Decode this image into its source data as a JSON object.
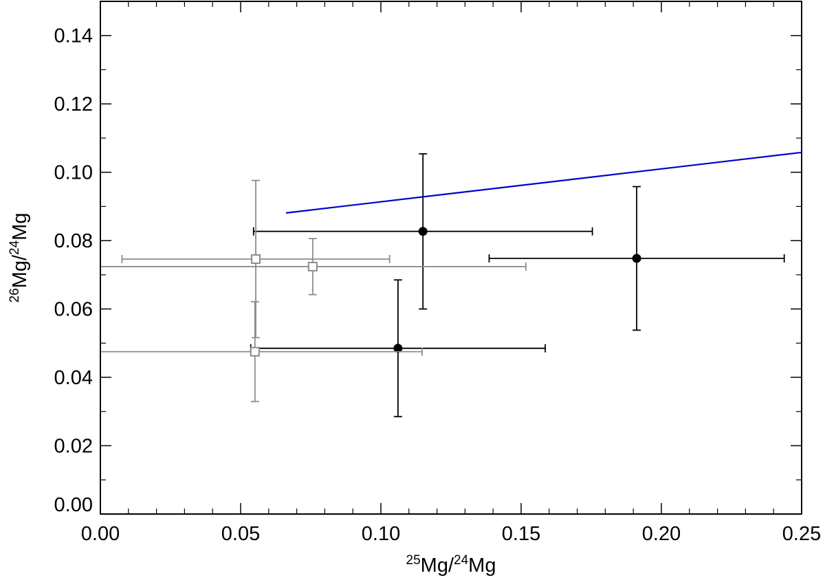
{
  "chart_data": {
    "type": "scatter",
    "xlabel": [
      {
        "text": "25",
        "sup": true
      },
      {
        "text": "Mg/",
        "sup": false
      },
      {
        "text": "24",
        "sup": true
      },
      {
        "text": "Mg",
        "sup": false
      }
    ],
    "ylabel": [
      {
        "text": "26",
        "sup": true
      },
      {
        "text": "Mg/",
        "sup": false
      },
      {
        "text": "24",
        "sup": true
      },
      {
        "text": "Mg",
        "sup": false
      }
    ],
    "xlim": [
      0,
      0.25
    ],
    "ylim": [
      0,
      0.15
    ],
    "xticks": [
      {
        "value": 0,
        "label": "0.00"
      },
      {
        "value": 0.05,
        "label": "0.05"
      },
      {
        "value": 0.1,
        "label": "0.10"
      },
      {
        "value": 0.15,
        "label": "0.15"
      },
      {
        "value": 0.2,
        "label": "0.20"
      },
      {
        "value": 0.25,
        "label": "0.25"
      }
    ],
    "yticks": [
      {
        "value": 0,
        "label": "0.00"
      },
      {
        "value": 0.02,
        "label": "0.02"
      },
      {
        "value": 0.04,
        "label": "0.04"
      },
      {
        "value": 0.06,
        "label": "0.06"
      },
      {
        "value": 0.08,
        "label": "0.08"
      },
      {
        "value": 0.1,
        "label": "0.10"
      },
      {
        "value": 0.12,
        "label": "0.12"
      },
      {
        "value": 0.14,
        "label": "0.14"
      }
    ],
    "series": [
      {
        "type": "scatter",
        "marker": "circle",
        "color": "#000000",
        "x": [
          0.115,
          0.1912,
          0.1061
        ],
        "values": [
          0.0827,
          0.0748,
          0.0485
        ],
        "xerr": [
          0.0604,
          0.0526,
          0.0525
        ],
        "yerr": [
          0.0227,
          0.021,
          0.02
        ]
      },
      {
        "type": "scatter",
        "marker": "square",
        "color": "#8c8c8c",
        "x": [
          0.0554,
          0.0757,
          0.0551
        ],
        "values": [
          0.0746,
          0.0724,
          0.0475
        ],
        "xerr": [
          0.0477,
          0.076,
          0.0596
        ],
        "yerr": [
          0.023,
          0.0082,
          0.0146
        ]
      },
      {
        "type": "line",
        "color": "#0000cc",
        "x": [
          0.0662,
          0.25
        ],
        "values": [
          0.0881,
          0.1058
        ]
      }
    ]
  }
}
